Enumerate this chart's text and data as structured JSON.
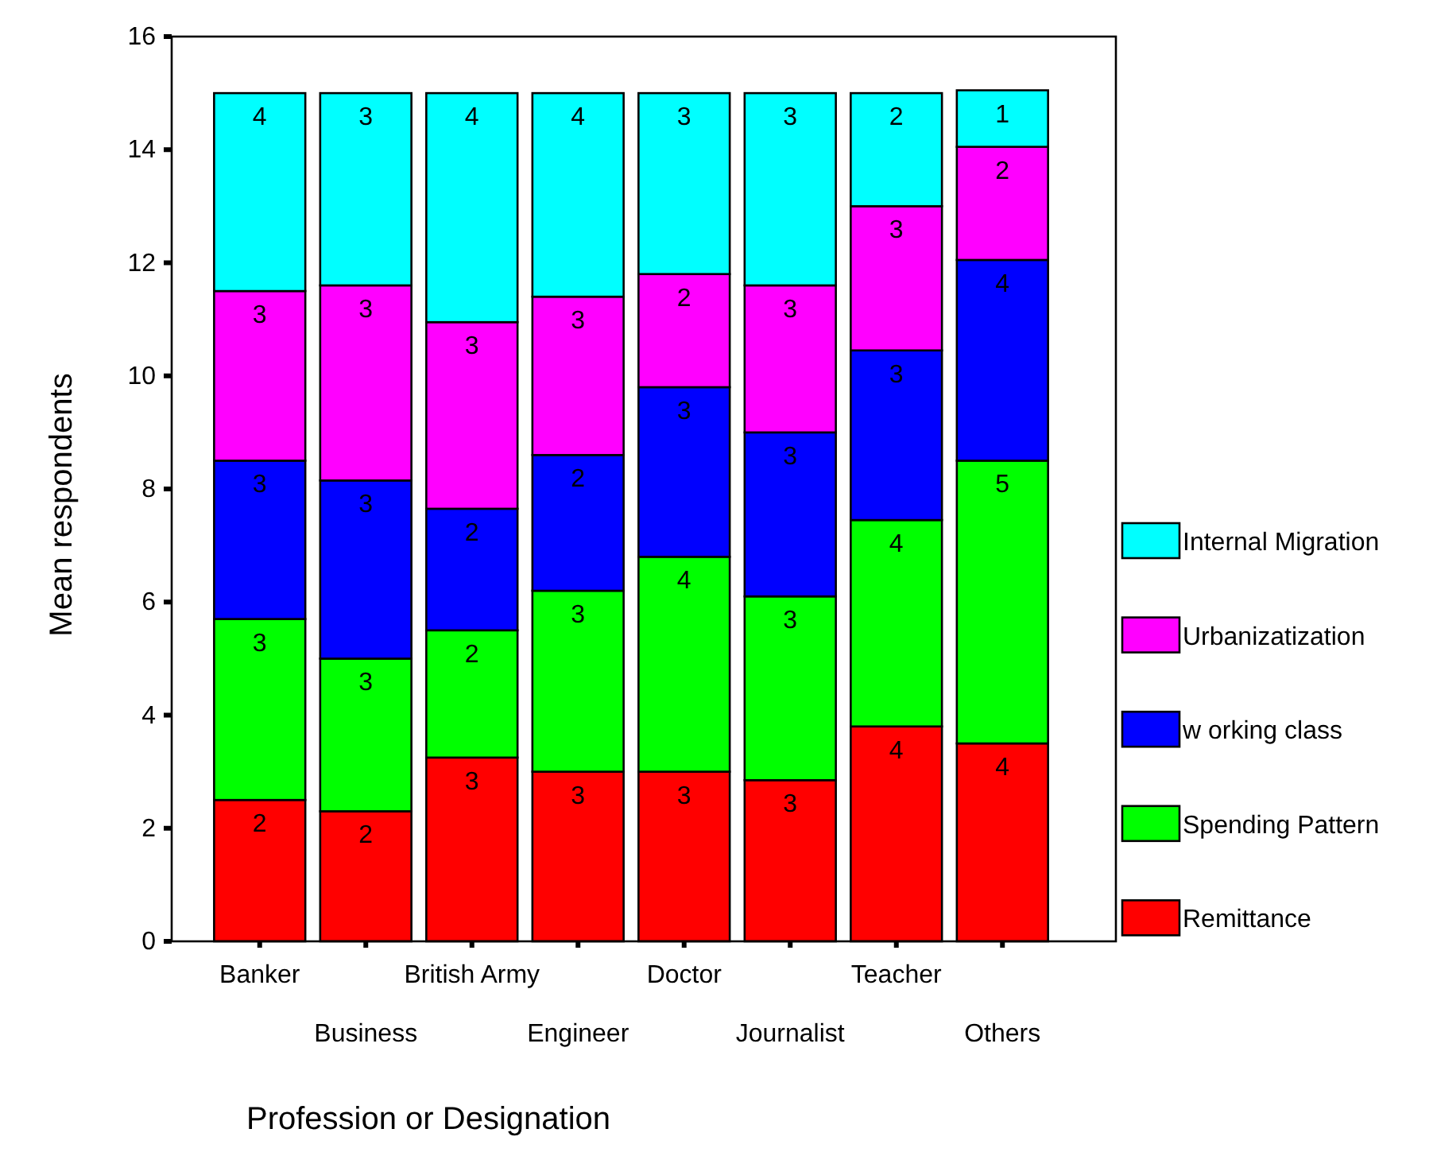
{
  "chart_data": {
    "type": "bar",
    "stacked": true,
    "xlabel": "Profession or Designation",
    "ylabel": "Mean respondents",
    "categories": [
      "Banker",
      "Business",
      "British Army",
      "Engineer",
      "Doctor",
      "Journalist",
      "Teacher",
      "Others"
    ],
    "ylim": [
      0,
      16
    ],
    "yticks": [
      0,
      2,
      4,
      6,
      8,
      10,
      12,
      14,
      16
    ],
    "grid": false,
    "legend": "right",
    "series": [
      {
        "name": "Remittance",
        "color": "#ff0000",
        "values": [
          2.5,
          2.3,
          3.25,
          3.0,
          3.0,
          2.85,
          3.8,
          3.5
        ],
        "value_labels": [
          "2",
          "2",
          "3",
          "3",
          "3",
          "3",
          "4",
          "4"
        ]
      },
      {
        "name": "Spending Pattern",
        "color": "#00ff00",
        "values": [
          3.2,
          2.7,
          2.25,
          3.2,
          3.8,
          3.25,
          3.65,
          5.0
        ],
        "value_labels": [
          "3",
          "3",
          "2",
          "3",
          "4",
          "3",
          "4",
          "5"
        ]
      },
      {
        "name": "w orking class",
        "color": "#0000ff",
        "values": [
          2.8,
          3.15,
          2.15,
          2.4,
          3.0,
          2.9,
          3.0,
          3.55
        ],
        "value_labels": [
          "3",
          "3",
          "2",
          "2",
          "3",
          "3",
          "3",
          "4"
        ]
      },
      {
        "name": "Urbanizatization",
        "color": "#ff00ff",
        "values": [
          3.0,
          3.45,
          3.3,
          2.8,
          2.0,
          2.6,
          2.55,
          2.0
        ],
        "value_labels": [
          "3",
          "3",
          "3",
          "3",
          "2",
          "3",
          "3",
          "2"
        ]
      },
      {
        "name": "Internal Migration",
        "color": "#00ffff",
        "values": [
          3.5,
          3.4,
          4.05,
          3.6,
          3.2,
          3.4,
          2.0,
          1.0
        ],
        "value_labels": [
          "4",
          "3",
          "4",
          "4",
          "3",
          "3",
          "2",
          "1"
        ]
      }
    ]
  }
}
